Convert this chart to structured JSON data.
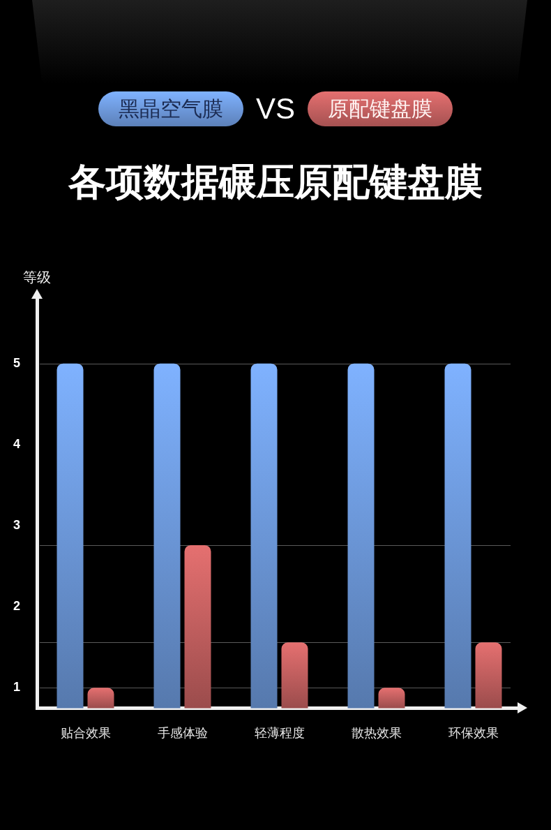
{
  "chart_data": {
    "type": "bar",
    "title": "各项数据碾压原配键盘膜",
    "ylabel": "等级",
    "annotations": [
      "VS"
    ],
    "categories": [
      "贴合效果",
      "手感体验",
      "轻薄程度",
      "散热效果",
      "环保效果"
    ],
    "series": [
      {
        "name": "黑晶空气膜",
        "color": "#6c97d8",
        "values": [
          5,
          5,
          5,
          5,
          5
        ]
      },
      {
        "name": "原配键盘膜",
        "color": "#c25f5f",
        "values": [
          1,
          2.76,
          1.56,
          1,
          1.56
        ]
      }
    ],
    "ylim": [
      0.75,
      5.85
    ],
    "yticks": [
      1,
      2,
      3,
      4,
      5
    ],
    "ref_lines": [
      {
        "axis": "y",
        "value": 5,
        "color": "#5a5a5a"
      },
      {
        "axis": "y",
        "value": 2.76,
        "color": "#5a5a5a"
      },
      {
        "axis": "y",
        "value": 1.56,
        "color": "#5a5a5a"
      },
      {
        "axis": "y",
        "value": 1,
        "color": "#5a5a5a"
      }
    ],
    "legend": "top"
  }
}
